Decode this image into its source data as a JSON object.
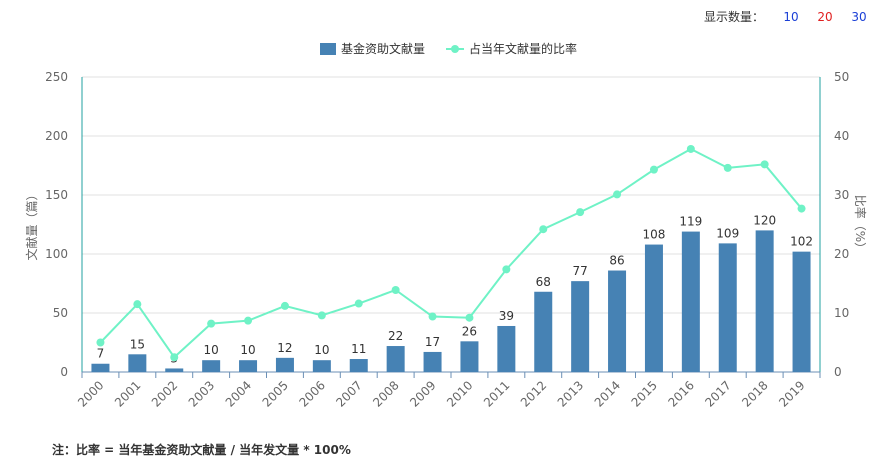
{
  "controls": {
    "label": "显示数量：",
    "options": [
      {
        "text": "10",
        "color": "#1a3fd6"
      },
      {
        "text": "20",
        "color": "#e02020"
      },
      {
        "text": "30",
        "color": "#1a3fd6"
      }
    ]
  },
  "footnote": "注：比率 = 当年基金资助文献量 / 当年发文量 * 100%",
  "chart_data": {
    "type": "bar+line",
    "categories": [
      "2000",
      "2001",
      "2002",
      "2003",
      "2004",
      "2005",
      "2006",
      "2007",
      "2008",
      "2009",
      "2010",
      "2011",
      "2012",
      "2013",
      "2014",
      "2015",
      "2016",
      "2017",
      "2018",
      "2019"
    ],
    "series": [
      {
        "name": "基金资助文献量",
        "type": "bar",
        "axis": "left",
        "color": "#4682b4",
        "values": [
          7,
          15,
          3,
          10,
          10,
          12,
          10,
          11,
          22,
          17,
          26,
          39,
          68,
          77,
          86,
          108,
          119,
          109,
          120,
          102
        ]
      },
      {
        "name": "占当年文献量的比率",
        "type": "line",
        "axis": "right",
        "color": "#6ff2c6",
        "values": [
          5.0,
          11.5,
          2.5,
          8.2,
          8.7,
          11.2,
          9.6,
          11.6,
          13.9,
          9.4,
          9.2,
          17.4,
          24.2,
          27.1,
          30.1,
          34.3,
          37.8,
          34.6,
          35.2,
          27.7
        ]
      }
    ],
    "ylabel": "文献量（篇）",
    "ylabel_right": "比率（%）",
    "ylim": [
      0,
      250
    ],
    "ylim_right": [
      0,
      50
    ],
    "yticks": [
      0,
      50,
      100,
      150,
      200,
      250
    ],
    "yticks_right": [
      0,
      10,
      20,
      30,
      40,
      50
    ],
    "grid": true,
    "legend_position": "top-center",
    "axis_color_right": "#20a0a0"
  }
}
